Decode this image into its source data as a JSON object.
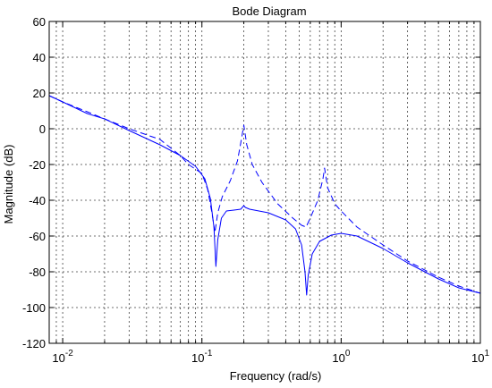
{
  "chart_data": {
    "type": "line",
    "title": "Bode Diagram",
    "xlabel": "Frequency  (rad/s)",
    "ylabel": "Magnitude (dB)",
    "x_scale": "log",
    "xlim": [
      0.008,
      10
    ],
    "ylim": [
      -120,
      60
    ],
    "x_ticks": [
      {
        "value": 0.01,
        "base": "10",
        "exp": "-2"
      },
      {
        "value": 0.1,
        "base": "10",
        "exp": "-1"
      },
      {
        "value": 1,
        "base": "10",
        "exp": "0"
      },
      {
        "value": 10,
        "base": "10",
        "exp": "1"
      }
    ],
    "y_ticks": [
      60,
      40,
      20,
      0,
      -20,
      -40,
      -60,
      -80,
      -100,
      -120
    ],
    "y_tick_labels": [
      "60",
      "40",
      "20",
      "0",
      "-20",
      "-40",
      "-60",
      "-80",
      "-100",
      "-120"
    ],
    "grid": true,
    "series": [
      {
        "style": "solid",
        "color": "#0000ff",
        "points": [
          [
            0.008,
            18.5
          ],
          [
            0.01,
            15
          ],
          [
            0.015,
            8.5
          ],
          [
            0.02,
            5.5
          ],
          [
            0.03,
            -1
          ],
          [
            0.05,
            -9
          ],
          [
            0.07,
            -15
          ],
          [
            0.09,
            -21
          ],
          [
            0.105,
            -28
          ],
          [
            0.115,
            -39
          ],
          [
            0.122,
            -55
          ],
          [
            0.126,
            -77
          ],
          [
            0.13,
            -62
          ],
          [
            0.138,
            -50
          ],
          [
            0.15,
            -46
          ],
          [
            0.17,
            -45.5
          ],
          [
            0.19,
            -45
          ],
          [
            0.2,
            -43
          ],
          [
            0.205,
            -44
          ],
          [
            0.22,
            -45
          ],
          [
            0.3,
            -47
          ],
          [
            0.4,
            -51
          ],
          [
            0.47,
            -56
          ],
          [
            0.52,
            -65
          ],
          [
            0.55,
            -80
          ],
          [
            0.565,
            -93
          ],
          [
            0.58,
            -82
          ],
          [
            0.62,
            -70
          ],
          [
            0.7,
            -63
          ],
          [
            0.85,
            -59.5
          ],
          [
            1,
            -58.5
          ],
          [
            1.3,
            -60
          ],
          [
            2,
            -67
          ],
          [
            3,
            -75
          ],
          [
            5,
            -84
          ],
          [
            7,
            -89
          ],
          [
            10,
            -92
          ]
        ]
      },
      {
        "style": "dashed",
        "color": "#0000ff",
        "points": [
          [
            0.008,
            18.5
          ],
          [
            0.01,
            15
          ],
          [
            0.015,
            9.5
          ],
          [
            0.02,
            5.5
          ],
          [
            0.03,
            0
          ],
          [
            0.05,
            -6
          ],
          [
            0.07,
            -15
          ],
          [
            0.08,
            -20
          ],
          [
            0.1,
            -25
          ],
          [
            0.11,
            -34
          ],
          [
            0.118,
            -47
          ],
          [
            0.124,
            -58
          ],
          [
            0.13,
            -47
          ],
          [
            0.14,
            -38
          ],
          [
            0.16,
            -29
          ],
          [
            0.18,
            -18
          ],
          [
            0.19,
            -8
          ],
          [
            0.2,
            2
          ],
          [
            0.21,
            -9
          ],
          [
            0.23,
            -20
          ],
          [
            0.27,
            -30
          ],
          [
            0.35,
            -42
          ],
          [
            0.45,
            -50
          ],
          [
            0.52,
            -54
          ],
          [
            0.56,
            -55
          ],
          [
            0.6,
            -50
          ],
          [
            0.68,
            -40
          ],
          [
            0.74,
            -28
          ],
          [
            0.76,
            -22
          ],
          [
            0.8,
            -33
          ],
          [
            0.9,
            -42
          ],
          [
            1,
            -46
          ],
          [
            1.3,
            -55
          ],
          [
            2,
            -65
          ],
          [
            3,
            -74
          ],
          [
            5,
            -83
          ],
          [
            7,
            -88
          ],
          [
            10,
            -92
          ]
        ]
      }
    ]
  }
}
